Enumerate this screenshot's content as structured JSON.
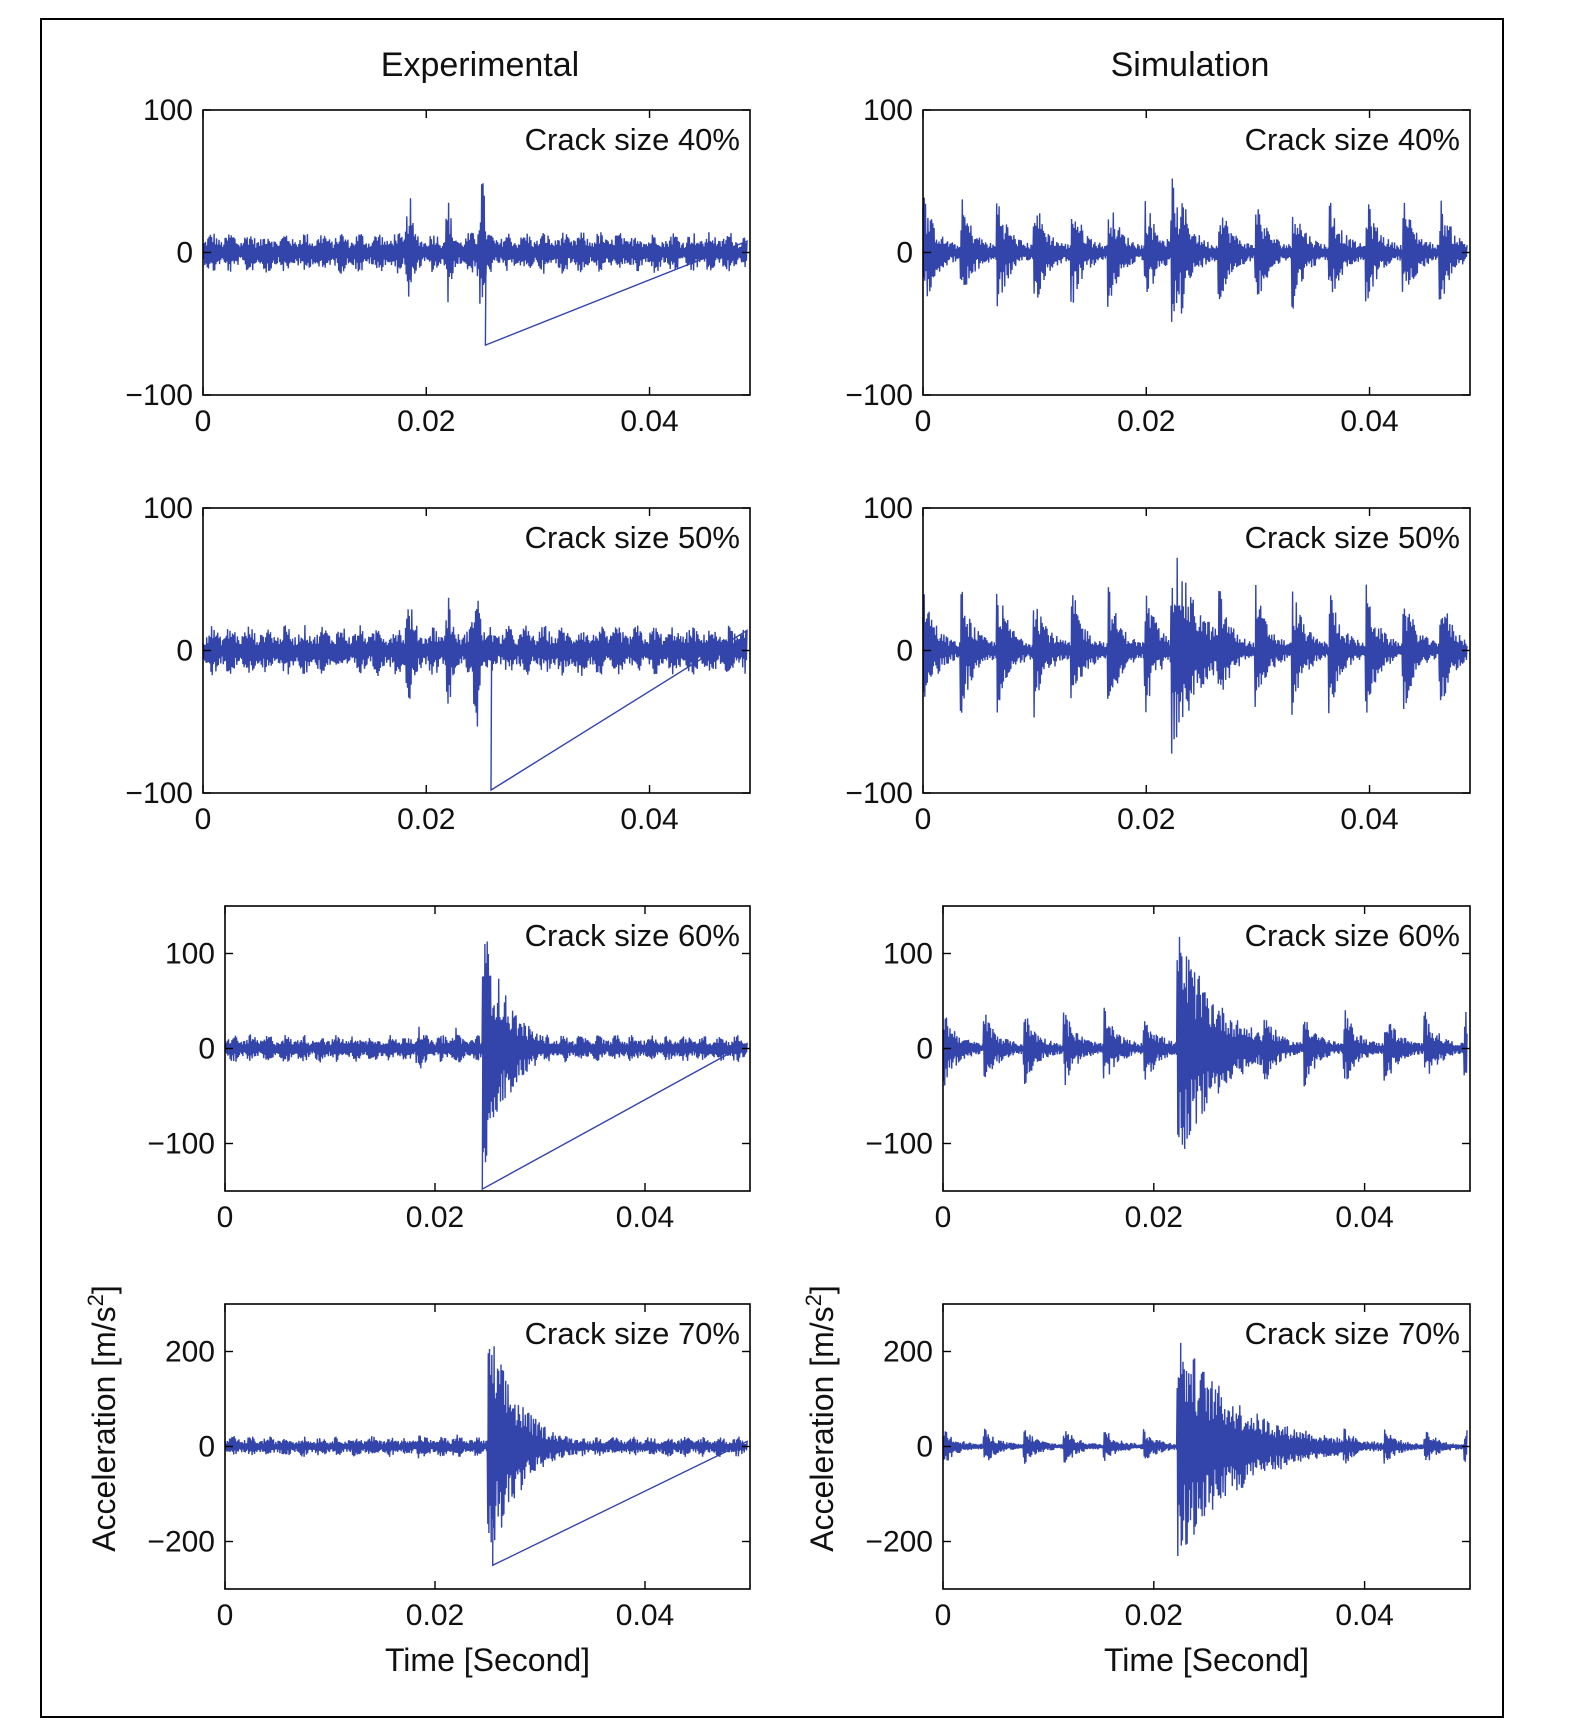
{
  "column_titles": [
    "Experimental",
    "Simulation"
  ],
  "colors": {
    "signal": "#3344aa",
    "axis": "#000000"
  },
  "chart_data": [
    {
      "type": "line",
      "column": "Experimental",
      "annotation": "Crack size 40%",
      "xlim": [
        0,
        0.049
      ],
      "ylim": [
        -100,
        100
      ],
      "yticks": [
        -100,
        0,
        100
      ],
      "xticks": [
        0,
        0.02,
        0.04
      ],
      "ytick_labels": [
        "−100",
        "0",
        "100"
      ],
      "xtick_labels": [
        "0",
        "0.02",
        "0.04"
      ],
      "xlabel": "",
      "ylabel": "",
      "pattern": "exp",
      "base_amp": 15,
      "spikes": [
        [
          0.0185,
          45
        ],
        [
          0.022,
          40
        ],
        [
          0.025,
          60
        ]
      ],
      "peak": [
        0.0253,
        -65
      ]
    },
    {
      "type": "line",
      "column": "Simulation",
      "annotation": "Crack size 40%",
      "xlim": [
        0,
        0.049
      ],
      "ylim": [
        -100,
        100
      ],
      "yticks": [
        -100,
        0,
        100
      ],
      "xticks": [
        0,
        0.02,
        0.04
      ],
      "ytick_labels": [
        "−100",
        "0",
        "100"
      ],
      "xtick_labels": [
        "0",
        "0.02",
        "0.04"
      ],
      "xlabel": "",
      "ylabel": "",
      "pattern": "sim",
      "base_amp": 42,
      "period": 0.0033,
      "event_time": 0.0222,
      "event_amp": 62,
      "event_decay": 0.001
    },
    {
      "type": "line",
      "column": "Experimental",
      "annotation": "Crack size 50%",
      "xlim": [
        0,
        0.049
      ],
      "ylim": [
        -100,
        100
      ],
      "yticks": [
        -100,
        0,
        100
      ],
      "xticks": [
        0,
        0.02,
        0.04
      ],
      "ytick_labels": [
        "−100",
        "0",
        "100"
      ],
      "xtick_labels": [
        "0",
        "0.02",
        "0.04"
      ],
      "xlabel": "",
      "ylabel": "",
      "pattern": "exp",
      "base_amp": 18,
      "spikes": [
        [
          0.0185,
          45
        ],
        [
          0.022,
          45
        ],
        [
          0.0245,
          65
        ]
      ],
      "peak": [
        0.0258,
        -98
      ]
    },
    {
      "type": "line",
      "column": "Simulation",
      "annotation": "Crack size 50%",
      "xlim": [
        0,
        0.049
      ],
      "ylim": [
        -100,
        100
      ],
      "yticks": [
        -100,
        0,
        100
      ],
      "xticks": [
        0,
        0.02,
        0.04
      ],
      "ytick_labels": [
        "−100",
        "0",
        "100"
      ],
      "xtick_labels": [
        "0",
        "0.02",
        "0.04"
      ],
      "xlabel": "",
      "ylabel": "",
      "pattern": "sim",
      "base_amp": 48,
      "period": 0.0033,
      "event_time": 0.0222,
      "event_amp": 82,
      "event_decay": 0.0025
    },
    {
      "type": "line",
      "column": "Experimental",
      "annotation": "Crack size 60%",
      "xlim": [
        0,
        0.05
      ],
      "ylim": [
        -150,
        150
      ],
      "yticks": [
        -100,
        0,
        100
      ],
      "xticks": [
        0,
        0.02,
        0.04
      ],
      "ytick_labels": [
        "−100",
        "0",
        "100"
      ],
      "xtick_labels": [
        "0",
        "0.02",
        "0.04"
      ],
      "xlabel": "",
      "ylabel": "",
      "pattern": "exp",
      "base_amp": 15,
      "spikes": [
        [
          0.0185,
          30
        ],
        [
          0.022,
          30
        ]
      ],
      "peak": [
        0.0245,
        -148
      ],
      "event_time": 0.0245,
      "event_amp": 140,
      "event_decay": 0.0025
    },
    {
      "type": "line",
      "column": "Simulation",
      "annotation": "Crack size 60%",
      "xlim": [
        0,
        0.05
      ],
      "ylim": [
        -150,
        150
      ],
      "yticks": [
        -100,
        0,
        100
      ],
      "xticks": [
        0,
        0.02,
        0.04
      ],
      "ytick_labels": [
        "−100",
        "0",
        "100"
      ],
      "xtick_labels": [
        "0",
        "0.02",
        "0.04"
      ],
      "xlabel": "",
      "ylabel": "",
      "pattern": "sim",
      "base_amp": 42,
      "period": 0.0038,
      "event_time": 0.0222,
      "event_amp": 130,
      "event_decay": 0.004
    },
    {
      "type": "line",
      "column": "Experimental",
      "annotation": "Crack size 70%",
      "xlim": [
        0,
        0.05
      ],
      "ylim": [
        -300,
        300
      ],
      "yticks": [
        -200,
        0,
        200
      ],
      "xticks": [
        0,
        0.02,
        0.04
      ],
      "ytick_labels": [
        "−200",
        "0",
        "200"
      ],
      "xtick_labels": [
        "0",
        "0.02",
        "0.04"
      ],
      "xlabel": "Time [Second]",
      "ylabel": "Acceleration [m/s2]",
      "pattern": "exp",
      "base_amp": 22,
      "spikes": [
        [
          0.0185,
          30
        ],
        [
          0.022,
          35
        ]
      ],
      "peak": [
        0.0255,
        -250
      ],
      "event_time": 0.025,
      "event_amp": 270,
      "event_decay": 0.003
    },
    {
      "type": "line",
      "column": "Simulation",
      "annotation": "Crack size 70%",
      "xlim": [
        0,
        0.05
      ],
      "ylim": [
        -300,
        300
      ],
      "yticks": [
        -200,
        0,
        200
      ],
      "xticks": [
        0,
        0.02,
        0.04
      ],
      "ytick_labels": [
        "−200",
        "0",
        "200"
      ],
      "xtick_labels": [
        "0",
        "0.02",
        "0.04"
      ],
      "xlabel": "Time [Second]",
      "ylabel": "Acceleration [m/s2]",
      "pattern": "sim",
      "base_amp": 40,
      "period": 0.0038,
      "event_time": 0.0222,
      "event_amp": 250,
      "event_decay": 0.006
    }
  ]
}
